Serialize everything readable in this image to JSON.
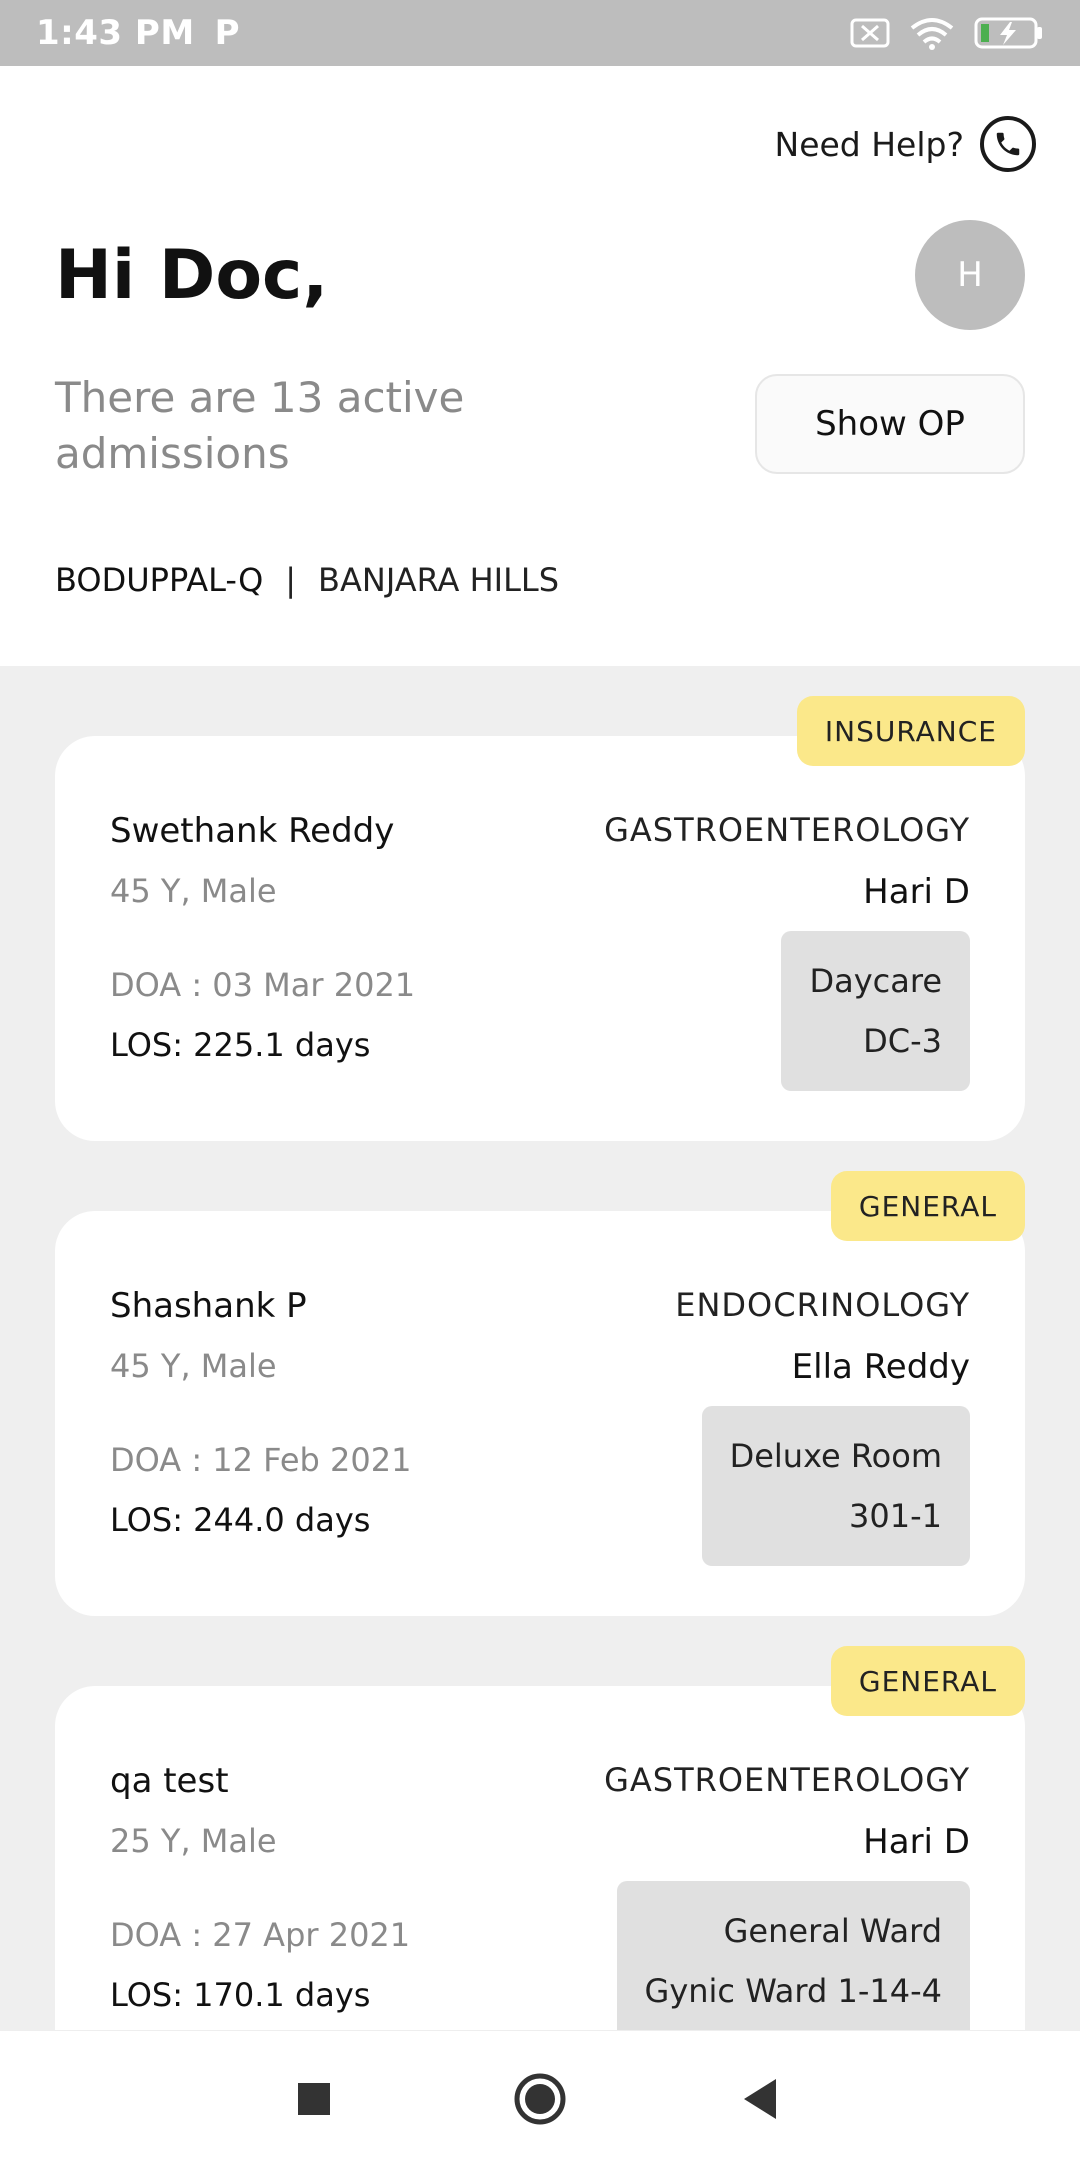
{
  "status_bar": {
    "time": "1:43 PM",
    "app_icon": "P",
    "icons": [
      "sim-off-icon",
      "wifi-icon",
      "battery-charging-icon"
    ]
  },
  "header": {
    "help_text": "Need Help?",
    "greeting": "Hi Doc,",
    "avatar_initial": "H",
    "admissions_text": "There are 13 active admissions",
    "show_op_label": "Show OP",
    "locations": {
      "active": "BODUPPAL-Q",
      "separator": "|",
      "other": "BANJARA HILLS"
    }
  },
  "admissions": [
    {
      "badge": "INSURANCE",
      "name": "Swethank Reddy",
      "info": "45 Y, Male",
      "department": "GASTROENTEROLOGY",
      "doctor": "Hari D",
      "doa": "DOA : 03 Mar 2021",
      "los": "LOS: 225.1 days",
      "room_type": "Daycare",
      "room_no": "DC-3"
    },
    {
      "badge": "GENERAL",
      "name": "Shashank P",
      "info": "45 Y, Male",
      "department": "ENDOCRINOLOGY",
      "doctor": "Ella Reddy",
      "doa": "DOA : 12 Feb 2021",
      "los": "LOS: 244.0 days",
      "room_type": "Deluxe Room",
      "room_no": "301-1"
    },
    {
      "badge": "GENERAL",
      "name": "qa test",
      "info": "25 Y, Male",
      "department": "GASTROENTEROLOGY",
      "doctor": "Hari D",
      "doa": "DOA : 27 Apr 2021",
      "los": "LOS: 170.1 days",
      "room_type": "General Ward",
      "room_no": "Gynic Ward 1-14-4"
    }
  ],
  "colors": {
    "badge_yellow": "#fbe88a",
    "list_background": "#efefef",
    "avatar_gray": "#bdbdbd",
    "room_box_gray": "#e0e0e0"
  }
}
